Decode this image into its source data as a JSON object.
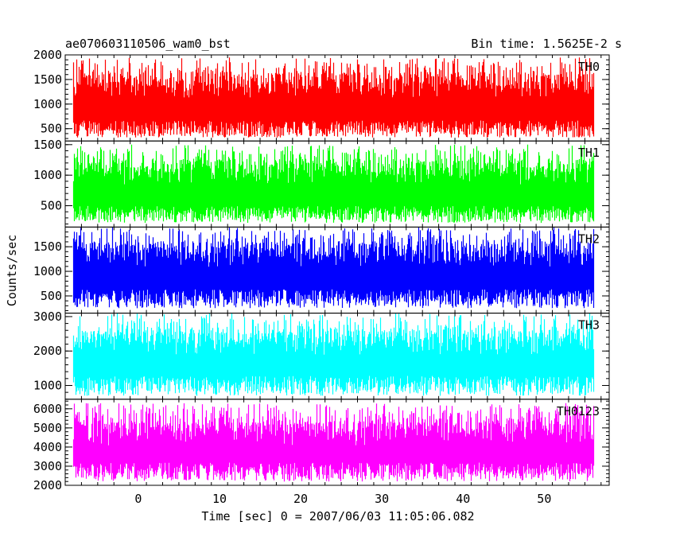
{
  "header": {
    "left_title": "ae070603110506_wam0_bst",
    "right_title": "Bin time: 1.5625E-2 s"
  },
  "chart_data": {
    "type": "line",
    "xlabel": "Time [sec] 0 = 2007/06/03 11:05:06.082",
    "ylabel": "Counts/sec",
    "xlim": [
      -9,
      58
    ],
    "xticks": [
      0,
      10,
      20,
      30,
      40,
      50
    ],
    "x_data_range": [
      -8,
      56
    ],
    "panels": [
      {
        "name": "TH0",
        "color": "#ff0000",
        "ylim": [
          250,
          2000
        ],
        "yticks": [
          500,
          1000,
          1500,
          2000
        ],
        "value_range": [
          320,
          1950
        ],
        "mean": 950
      },
      {
        "name": "TH1",
        "color": "#00ff00",
        "ylim": [
          150,
          1560
        ],
        "yticks": [
          500,
          1000,
          1500
        ],
        "value_range": [
          220,
          1500
        ],
        "mean": 720
      },
      {
        "name": "TH2",
        "color": "#0000ff",
        "ylim": [
          150,
          1900
        ],
        "yticks": [
          500,
          1000,
          1500
        ],
        "value_range": [
          250,
          1900
        ],
        "mean": 950
      },
      {
        "name": "TH3",
        "color": "#00ffff",
        "ylim": [
          600,
          3100
        ],
        "yticks": [
          1000,
          2000,
          3000
        ],
        "value_range": [
          700,
          3100
        ],
        "mean": 1750
      },
      {
        "name": "TH0123",
        "color": "#ff00ff",
        "ylim": [
          2000,
          6500
        ],
        "yticks": [
          2000,
          3000,
          4000,
          5000,
          6000
        ],
        "value_range": [
          2200,
          6300
        ],
        "mean": 4000
      }
    ]
  }
}
